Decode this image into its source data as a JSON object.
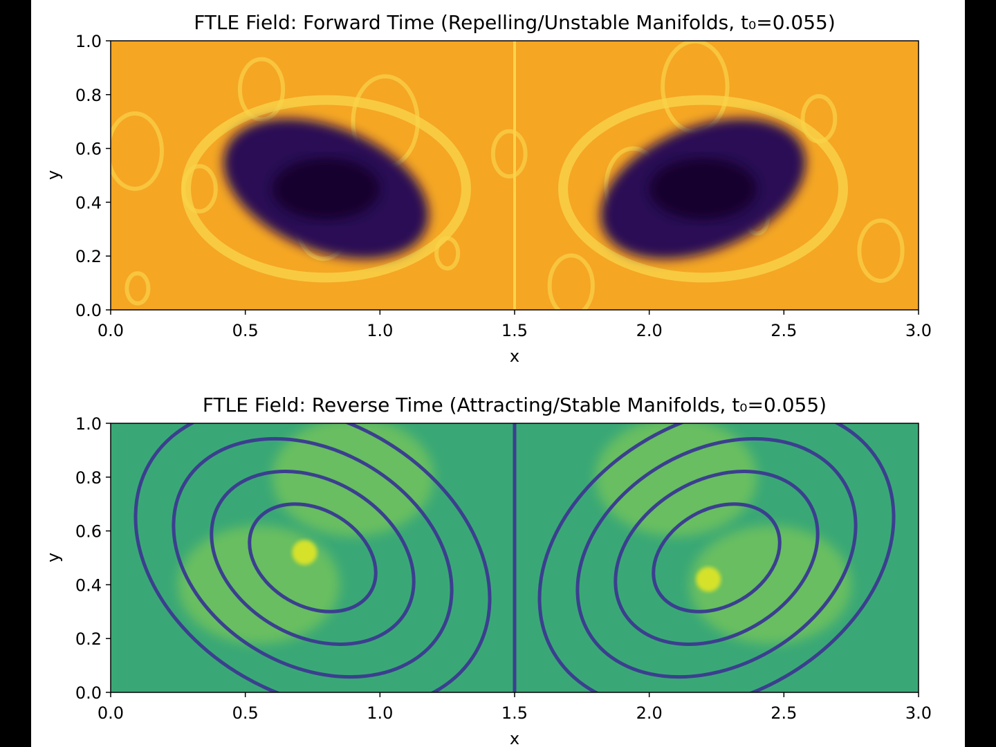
{
  "chart_data": [
    {
      "type": "heatmap",
      "title": "FTLE Field: Forward Time (Repelling/Unstable Manifolds, t₀=0.055)",
      "xlabel": "x",
      "ylabel": "y",
      "xlim": [
        0.0,
        3.0
      ],
      "ylim": [
        0.0,
        1.0
      ],
      "x_ticks": [
        "0.0",
        "0.5",
        "1.0",
        "1.5",
        "2.0",
        "2.5",
        "3.0"
      ],
      "y_ticks": [
        "0.0",
        "0.2",
        "0.4",
        "0.6",
        "0.8",
        "1.0"
      ],
      "colormap": "plasma",
      "background_color": "#f5a623",
      "filament_color": "#f9d34a",
      "region_color": "#2a0a55",
      "core_color": "#12052e",
      "regions": [
        {
          "x": 0.8,
          "y": 0.45,
          "rx": 0.4,
          "ry": 0.23
        },
        {
          "x": 2.2,
          "y": 0.45,
          "rx": 0.4,
          "ry": 0.23
        }
      ],
      "center_line_x": 1.5
    },
    {
      "type": "heatmap",
      "title": "FTLE Field: Reverse Time (Attracting/Stable Manifolds, t₀=0.055)",
      "xlabel": "x",
      "ylabel": "y",
      "xlim": [
        0.0,
        3.0
      ],
      "ylim": [
        0.0,
        1.0
      ],
      "x_ticks": [
        "0.0",
        "0.5",
        "1.0",
        "1.5",
        "2.0",
        "2.5",
        "3.0"
      ],
      "y_ticks": [
        "0.0",
        "0.2",
        "0.4",
        "0.6",
        "0.8",
        "1.0"
      ],
      "colormap": "viridis",
      "background_color": "#3aa876",
      "highlight_color": "#8fd14f",
      "ridge_color": "#3b3f8f",
      "hotspot_color": "#d6e22a",
      "hotspots": [
        {
          "x": 0.72,
          "y": 0.52
        },
        {
          "x": 2.22,
          "y": 0.42
        }
      ],
      "center_line_x": 1.5
    }
  ]
}
